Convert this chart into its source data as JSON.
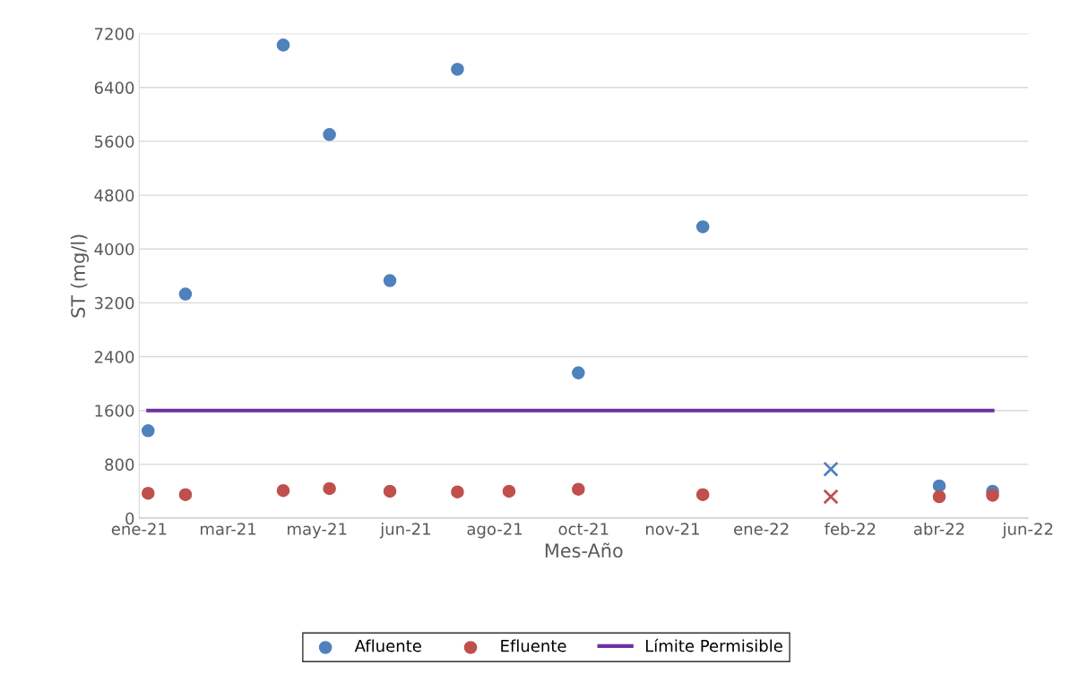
{
  "chart_data": {
    "type": "scatter",
    "xlabel": "Mes-Año",
    "ylabel": "ST (mg/l)",
    "series": [
      {
        "name": "Afluente",
        "color": "#4f81bd",
        "x": [
          "2021-01-29",
          "2021-02-19",
          "2021-04-15",
          "2021-05-11",
          "2021-06-14",
          "2021-07-22",
          "2021-09-28",
          "2021-12-07",
          "2022-04-19",
          "2022-05-19"
        ],
        "values": [
          1300,
          3330,
          7030,
          5700,
          3530,
          6670,
          2160,
          4330,
          480,
          400
        ]
      },
      {
        "name": "Efluente",
        "color": "#c0504d",
        "x": [
          "2021-01-29",
          "2021-02-19",
          "2021-04-15",
          "2021-05-11",
          "2021-06-14",
          "2021-07-22",
          "2021-08-20",
          "2021-09-28",
          "2021-12-07",
          "2022-04-19",
          "2022-05-19"
        ],
        "values": [
          370,
          350,
          410,
          440,
          400,
          390,
          400,
          430,
          350,
          320,
          340
        ]
      },
      {
        "color": "#4f81bd",
        "marker": "cross",
        "x": [
          "2022-02-17"
        ],
        "values": [
          730
        ]
      },
      {
        "color": "#c0504d",
        "marker": "cross",
        "x": [
          "2022-02-17"
        ],
        "values": [
          320
        ]
      },
      {
        "name": "Límite Permisible",
        "type": "line",
        "color": "#7030a0",
        "marker": "none",
        "x": [
          "2021-01-29",
          "2022-05-19"
        ],
        "values": [
          1600,
          1600
        ]
      }
    ],
    "marker": "circle",
    "xlim": [
      "2021-01-24",
      "2022-06-08"
    ],
    "xticks": [
      {
        "value": "2021-01-24",
        "label": "ene-21"
      },
      {
        "value": "2021-03-15",
        "label": "mar-21"
      },
      {
        "value": "2021-05-04",
        "label": "may-21"
      },
      {
        "value": "2021-06-23",
        "label": "jun-21"
      },
      {
        "value": "2021-08-12",
        "label": "ago-21"
      },
      {
        "value": "2021-10-01",
        "label": "oct-21"
      },
      {
        "value": "2021-11-20",
        "label": "nov-21"
      },
      {
        "value": "2022-01-09",
        "label": "ene-22"
      },
      {
        "value": "2022-02-28",
        "label": "feb-22"
      },
      {
        "value": "2022-04-19",
        "label": "abr-22"
      },
      {
        "value": "2022-06-08",
        "label": "jun-22"
      }
    ],
    "ylim": [
      0,
      7200
    ],
    "yticks": [
      0,
      800,
      1600,
      2400,
      3200,
      4000,
      4800,
      5600,
      6400,
      7200
    ],
    "grid": "y",
    "legend": "bottom"
  }
}
